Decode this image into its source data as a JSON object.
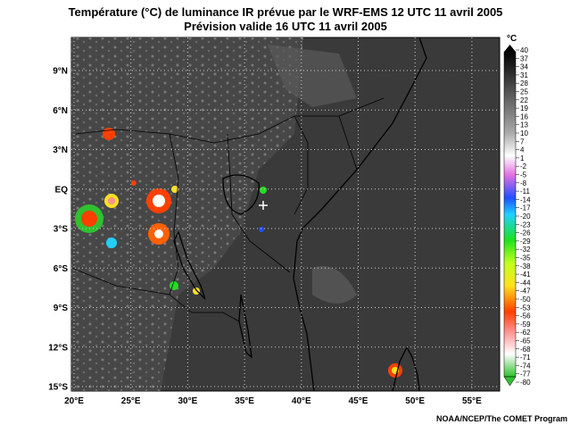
{
  "title": "Température (°C) de luminance IR prévue par le WRF-EMS 12 UTC 11 avril 2005",
  "subtitle": "Prévision valide 16 UTC 11 avril 2005",
  "map": {
    "lat_labels": [
      "9°N",
      "6°N",
      "3°N",
      "EQ",
      "3°S",
      "6°S",
      "9°S",
      "12°S",
      "15°S"
    ],
    "lon_labels": [
      "20°E",
      "25°E",
      "30°E",
      "35°E",
      "40°E",
      "45°E",
      "50°E",
      "55°E"
    ]
  },
  "colorbar": {
    "unit": "°C",
    "labels": [
      "40",
      "37",
      "34",
      "31",
      "28",
      "25",
      "22",
      "19",
      "16",
      "13",
      "10",
      "7",
      "4",
      "1",
      "-2",
      "-5",
      "-8",
      "-11",
      "-14",
      "-17",
      "-20",
      "-23",
      "-26",
      "-29",
      "-32",
      "-35",
      "-38",
      "-41",
      "-44",
      "-47",
      "-50",
      "-53",
      "-56",
      "-59",
      "-62",
      "-65",
      "-68",
      "-71",
      "-74",
      "-77",
      "-80"
    ]
  },
  "credit": "NOAA/NCEP/The COMET Program"
}
